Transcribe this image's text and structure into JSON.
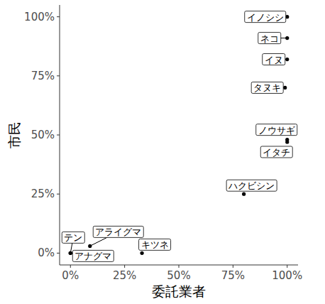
{
  "chart_data": {
    "type": "scatter",
    "x_label": "委託業者",
    "y_label": "市民",
    "point_labels": [
      "イノシシ",
      "ネコ",
      "イヌ",
      "タヌキ",
      "ノウサギ",
      "イタチ",
      "ハクビシン",
      "キツネ",
      "アライグマ",
      "テン",
      "アナグマ"
    ],
    "x": [
      100,
      100,
      100,
      99,
      100,
      100,
      80,
      33,
      9,
      0,
      0
    ],
    "values": [
      100,
      91,
      82,
      70,
      48,
      47,
      25,
      0,
      3,
      0,
      0
    ],
    "color": "#000000",
    "xlim": [
      -5,
      105
    ],
    "ylim": [
      -5,
      105
    ],
    "xticks": [
      {
        "value": 0,
        "label": "0%"
      },
      {
        "value": 25,
        "label": "25%"
      },
      {
        "value": 50,
        "label": "50%"
      },
      {
        "value": 75,
        "label": "75%"
      },
      {
        "value": 100,
        "label": "100%"
      }
    ],
    "yticks": [
      {
        "value": 0,
        "label": "0%"
      },
      {
        "value": 25,
        "label": "25%"
      },
      {
        "value": 50,
        "label": "50%"
      },
      {
        "value": 75,
        "label": "75%"
      },
      {
        "value": 100,
        "label": "100%"
      }
    ]
  }
}
